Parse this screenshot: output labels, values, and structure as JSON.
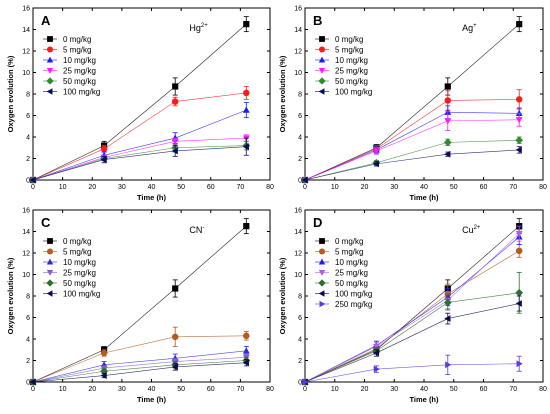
{
  "chart_data": [
    {
      "type": "line",
      "panel_label": "A",
      "annotation": "Hg",
      "annotation_sup": "2+",
      "xlabel": "Time (h)",
      "ylabel": "Oxygen evolution (%)",
      "xlim": [
        0,
        80
      ],
      "ylim": [
        0,
        16
      ],
      "x_ticks": [
        "0",
        "10",
        "20",
        "30",
        "40",
        "50",
        "60",
        "70",
        "80"
      ],
      "y_ticks": [
        "0",
        "2",
        "4",
        "6",
        "8",
        "10",
        "12",
        "14",
        "16"
      ],
      "x": [
        0,
        24,
        48,
        72
      ],
      "legend_position": "top-left",
      "series": [
        {
          "name": "0 mg/kg",
          "marker": "square",
          "color": "#000000",
          "values": [
            0,
            3.2,
            8.7,
            14.5
          ],
          "err": [
            0,
            0.4,
            0.8,
            0.7
          ]
        },
        {
          "name": "5 mg/kg",
          "marker": "circle",
          "color": "#ff1a1a",
          "values": [
            0,
            2.9,
            7.3,
            8.1
          ],
          "err": [
            0,
            0.3,
            0.4,
            0.6
          ]
        },
        {
          "name": "10 mg/kg",
          "marker": "triangle-up",
          "color": "#1a1aff",
          "values": [
            0,
            2.3,
            3.9,
            6.5
          ],
          "err": [
            0,
            0.3,
            0.5,
            0.7
          ]
        },
        {
          "name": "25 mg/kg",
          "marker": "triangle-down",
          "color": "#ff1aff",
          "values": [
            0,
            2.1,
            3.6,
            3.9
          ],
          "err": [
            0,
            0.2,
            0.3,
            0.3
          ]
        },
        {
          "name": "50 mg/kg",
          "marker": "diamond",
          "color": "#2e8b2e",
          "values": [
            0,
            2.0,
            3.0,
            3.2
          ],
          "err": [
            0,
            0.2,
            0.4,
            0.4
          ]
        },
        {
          "name": "100 mg/kg",
          "marker": "triangle-left",
          "color": "#0a0a60",
          "values": [
            0,
            1.9,
            2.7,
            3.1
          ],
          "err": [
            0,
            0.3,
            0.5,
            0.8
          ]
        }
      ]
    },
    {
      "type": "line",
      "panel_label": "B",
      "annotation": "Ag",
      "annotation_sup": "+",
      "xlabel": "Time (h)",
      "ylabel": "Oxygen evolution (%)",
      "xlim": [
        0,
        80
      ],
      "ylim": [
        0,
        16
      ],
      "x_ticks": [
        "0",
        "10",
        "20",
        "30",
        "40",
        "50",
        "60",
        "70",
        "80"
      ],
      "y_ticks": [
        "0",
        "2",
        "4",
        "6",
        "8",
        "10",
        "12",
        "14",
        "16"
      ],
      "x": [
        0,
        24,
        48,
        72
      ],
      "legend_position": "top-left",
      "series": [
        {
          "name": "0 mg/kg",
          "marker": "square",
          "color": "#000000",
          "values": [
            0,
            3.0,
            8.7,
            14.5
          ],
          "err": [
            0,
            0.3,
            0.8,
            0.7
          ]
        },
        {
          "name": "5 mg/kg",
          "marker": "circle",
          "color": "#ff1a1a",
          "values": [
            0,
            2.9,
            7.4,
            7.5
          ],
          "err": [
            0,
            0.3,
            0.9,
            0.9
          ]
        },
        {
          "name": "10 mg/kg",
          "marker": "triangle-up",
          "color": "#1a1aff",
          "values": [
            0,
            2.8,
            6.3,
            6.2
          ],
          "err": [
            0,
            0.3,
            0.6,
            0.5
          ]
        },
        {
          "name": "25 mg/kg",
          "marker": "triangle-down",
          "color": "#ff1aff",
          "values": [
            0,
            2.7,
            5.5,
            5.6
          ],
          "err": [
            0,
            0.3,
            0.9,
            0.6
          ]
        },
        {
          "name": "50 mg/kg",
          "marker": "diamond",
          "color": "#2e8b2e",
          "values": [
            0,
            1.6,
            3.5,
            3.7
          ],
          "err": [
            0,
            0.2,
            0.3,
            0.3
          ]
        },
        {
          "name": "100 mg/kg",
          "marker": "triangle-left",
          "color": "#0a0a60",
          "values": [
            0,
            1.5,
            2.4,
            2.8
          ],
          "err": [
            0,
            0.2,
            0.2,
            0.3
          ]
        }
      ]
    },
    {
      "type": "line",
      "panel_label": "C",
      "annotation": "CN",
      "annotation_sup": "-",
      "xlabel": "Time (h)",
      "ylabel": "Oxygen evolution (%)",
      "xlim": [
        0,
        80
      ],
      "ylim": [
        0,
        16
      ],
      "x_ticks": [
        "0",
        "10",
        "20",
        "30",
        "40",
        "50",
        "60",
        "70",
        "80"
      ],
      "y_ticks": [
        "0",
        "2",
        "4",
        "6",
        "8",
        "10",
        "12",
        "14",
        "16"
      ],
      "x": [
        0,
        24,
        48,
        72
      ],
      "legend_position": "top-left",
      "series": [
        {
          "name": "0 mg/kg",
          "marker": "square",
          "color": "#000000",
          "values": [
            0,
            3.0,
            8.7,
            14.5
          ],
          "err": [
            0,
            0.3,
            0.8,
            0.7
          ]
        },
        {
          "name": "5 mg/kg",
          "marker": "circle",
          "color": "#b35a1f",
          "values": [
            0,
            2.7,
            4.2,
            4.3
          ],
          "err": [
            0,
            0.3,
            0.9,
            0.4
          ]
        },
        {
          "name": "10 mg/kg",
          "marker": "triangle-up",
          "color": "#2b2bd9",
          "values": [
            0,
            1.6,
            2.2,
            2.9
          ],
          "err": [
            0,
            0.3,
            0.4,
            0.4
          ]
        },
        {
          "name": "25 mg/kg",
          "marker": "triangle-down",
          "color": "#8a5ad9",
          "values": [
            0,
            1.3,
            1.9,
            2.3
          ],
          "err": [
            0,
            0.2,
            0.3,
            0.3
          ]
        },
        {
          "name": "50 mg/kg",
          "marker": "diamond",
          "color": "#2e6e2e",
          "values": [
            0,
            1.0,
            1.6,
            2.0
          ],
          "err": [
            0,
            0.2,
            0.3,
            0.3
          ]
        },
        {
          "name": "100 mg/kg",
          "marker": "triangle-left",
          "color": "#0a0a50",
          "values": [
            0,
            0.6,
            1.4,
            1.8
          ],
          "err": [
            0,
            0.2,
            0.3,
            0.3
          ]
        }
      ]
    },
    {
      "type": "line",
      "panel_label": "D",
      "annotation": "Cu",
      "annotation_sup": "2+",
      "xlabel": "Time (h)",
      "ylabel": "Oxygen evolution (%)",
      "xlim": [
        0,
        80
      ],
      "ylim": [
        0,
        16
      ],
      "x_ticks": [
        "0",
        "10",
        "20",
        "30",
        "40",
        "50",
        "60",
        "70",
        "80"
      ],
      "y_ticks": [
        "0",
        "2",
        "4",
        "6",
        "8",
        "10",
        "12",
        "14",
        "16"
      ],
      "x": [
        0,
        24,
        48,
        72
      ],
      "legend_position": "top-left",
      "series": [
        {
          "name": "0 mg/kg",
          "marker": "square",
          "color": "#000000",
          "values": [
            0,
            3.0,
            8.7,
            14.5
          ],
          "err": [
            0,
            0.3,
            0.8,
            0.7
          ]
        },
        {
          "name": "5 mg/kg",
          "marker": "circle",
          "color": "#b35a1f",
          "values": [
            0,
            3.1,
            8.2,
            12.2
          ],
          "err": [
            0,
            0.4,
            0.9,
            0.6
          ]
        },
        {
          "name": "10 mg/kg",
          "marker": "triangle-up",
          "color": "#1a1aff",
          "values": [
            0,
            3.4,
            7.9,
            13.5
          ],
          "err": [
            0,
            0.4,
            0.8,
            0.7
          ]
        },
        {
          "name": "25 mg/kg",
          "marker": "triangle-down",
          "color": "#b45ae6",
          "values": [
            0,
            3.3,
            7.6,
            13.8
          ],
          "err": [
            0,
            0.4,
            0.8,
            0.7
          ]
        },
        {
          "name": "50 mg/kg",
          "marker": "diamond",
          "color": "#2e6e2e",
          "values": [
            0,
            2.9,
            7.4,
            8.3
          ],
          "err": [
            0,
            0.3,
            0.7,
            1.9
          ]
        },
        {
          "name": "100 mg/kg",
          "marker": "triangle-left",
          "color": "#0a0a50",
          "values": [
            0,
            2.7,
            5.9,
            7.3
          ],
          "err": [
            0,
            0.3,
            0.5,
            0.7
          ]
        },
        {
          "name": "250 mg/kg",
          "marker": "triangle-right",
          "color": "#5a3ae6",
          "values": [
            0,
            1.2,
            1.6,
            1.7
          ],
          "err": [
            0,
            0.3,
            0.9,
            0.7
          ]
        }
      ]
    }
  ]
}
